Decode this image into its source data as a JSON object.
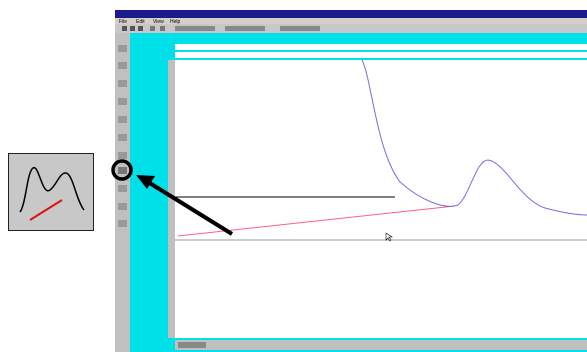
{
  "window": {
    "menu": [
      "File",
      "Edit",
      "View",
      "Help"
    ]
  }
}
